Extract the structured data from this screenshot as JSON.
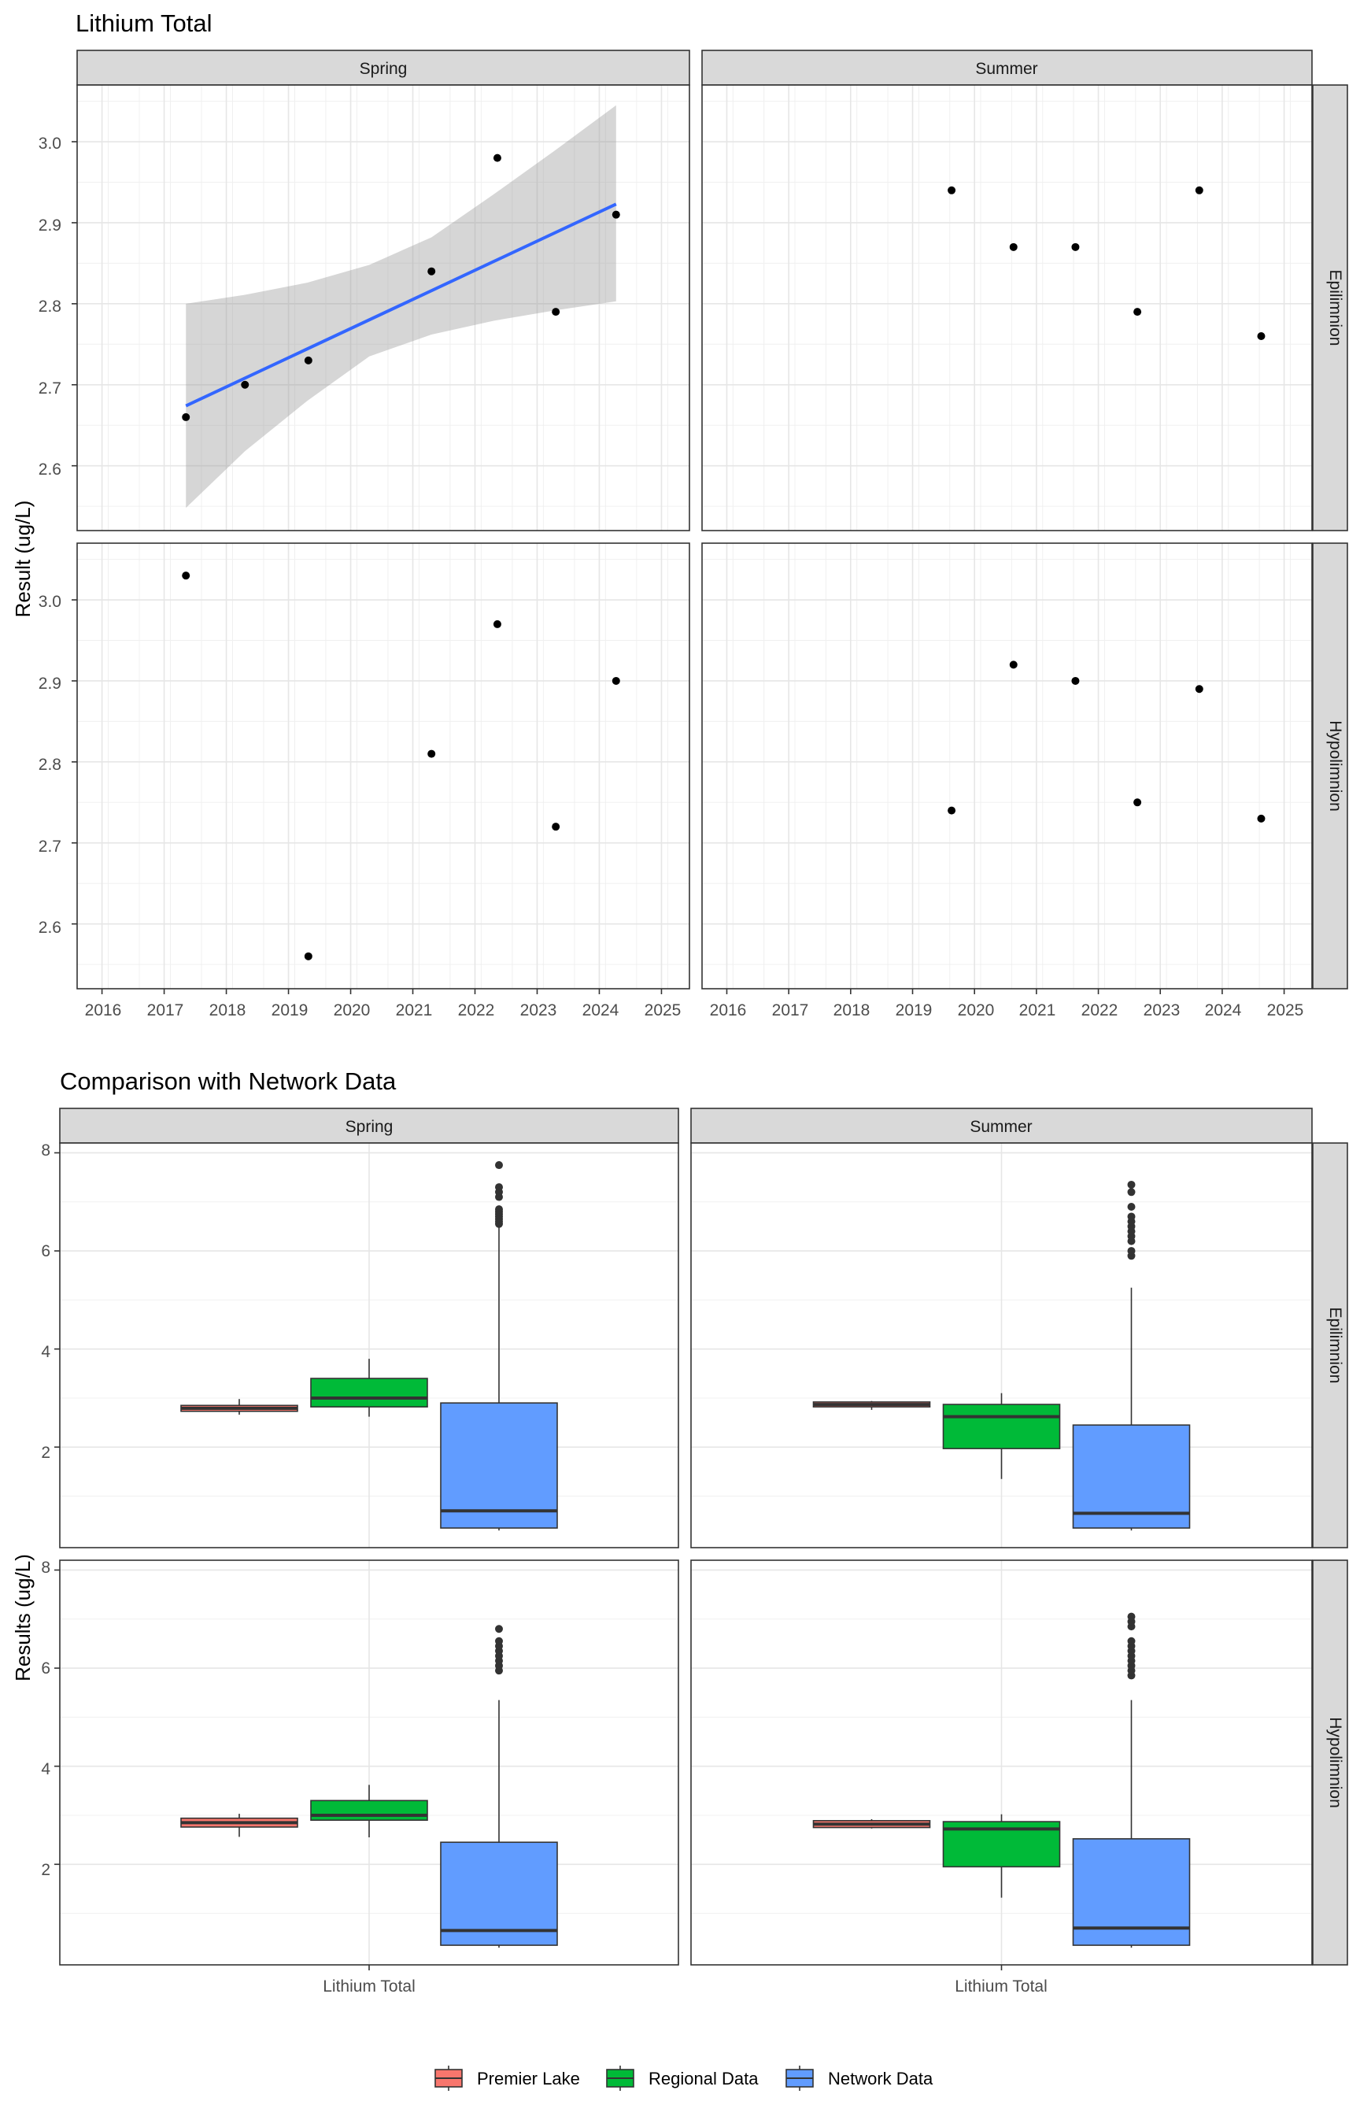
{
  "chart_data": [
    {
      "type": "scatter",
      "title": "Lithium Total",
      "ylabel": "Result (ug/L)",
      "xlabel": "",
      "columns": [
        "Spring",
        "Summer"
      ],
      "rows": [
        "Epilimnion",
        "Hypolimnion"
      ],
      "xlim": [
        2015.6,
        2025.45
      ],
      "ylim": [
        2.52,
        3.07
      ],
      "x_ticks": [
        "2016",
        "2017",
        "2018",
        "2019",
        "2020",
        "2021",
        "2022",
        "2023",
        "2024",
        "2025"
      ],
      "y_ticks": [
        "2.6",
        "2.7",
        "2.8",
        "2.9",
        "3.0"
      ],
      "grid": true,
      "panels": [
        {
          "col": "Spring",
          "row": "Epilimnion",
          "x": [
            2017.35,
            2018.3,
            2019.32,
            2021.3,
            2022.36,
            2023.3,
            2024.27
          ],
          "y": [
            2.66,
            2.7,
            2.73,
            2.84,
            2.98,
            2.79,
            2.91
          ],
          "trend": {
            "x": [
              2017.35,
              2024.27
            ],
            "y": [
              2.674,
              2.923
            ],
            "band_x": [
              2017.35,
              2018.3,
              2019.3,
              2020.3,
              2021.3,
              2022.3,
              2023.3,
              2024.27
            ],
            "band_upper": [
              2.8,
              2.811,
              2.826,
              2.848,
              2.882,
              2.935,
              2.99,
              3.045
            ],
            "band_lower": [
              2.548,
              2.618,
              2.68,
              2.735,
              2.762,
              2.779,
              2.792,
              2.803
            ]
          }
        },
        {
          "col": "Summer",
          "row": "Epilimnion",
          "x": [
            2019.63,
            2020.63,
            2021.63,
            2022.63,
            2023.63,
            2024.63
          ],
          "y": [
            2.94,
            2.87,
            2.87,
            2.79,
            2.94,
            2.76
          ]
        },
        {
          "col": "Spring",
          "row": "Hypolimnion",
          "x": [
            2017.35,
            2019.32,
            2021.3,
            2022.36,
            2023.3,
            2024.27
          ],
          "y": [
            3.03,
            2.56,
            2.81,
            2.97,
            2.72,
            2.9
          ]
        },
        {
          "col": "Summer",
          "row": "Hypolimnion",
          "x": [
            2019.63,
            2020.63,
            2021.63,
            2022.63,
            2023.63,
            2024.63
          ],
          "y": [
            2.74,
            2.92,
            2.9,
            2.75,
            2.89,
            2.73
          ]
        }
      ]
    },
    {
      "type": "box",
      "title": "Comparison with Network Data",
      "ylabel": "Results (ug/L)",
      "xlabel": "",
      "columns": [
        "Spring",
        "Summer"
      ],
      "rows": [
        "Epilimnion",
        "Hypolimnion"
      ],
      "category": "Lithium Total",
      "ylim": [
        -0.05,
        8.2
      ],
      "y_ticks": [
        "2",
        "4",
        "6",
        "8"
      ],
      "grid": true,
      "legend": {
        "position": "bottom",
        "items": [
          "Premier Lake",
          "Regional Data",
          "Network Data"
        ]
      },
      "colors": {
        "Premier Lake": "#F8766D",
        "Regional Data": "#00BA38",
        "Network Data": "#619CFF"
      },
      "panels": [
        {
          "col": "Spring",
          "row": "Epilimnion",
          "boxes": [
            {
              "group": "Premier Lake",
              "min": 2.66,
              "q1": 2.73,
              "median": 2.79,
              "q3": 2.85,
              "max": 2.98,
              "outliers": []
            },
            {
              "group": "Regional Data",
              "min": 2.62,
              "q1": 2.82,
              "median": 3.0,
              "q3": 3.4,
              "max": 3.8,
              "outliers": []
            },
            {
              "group": "Network Data",
              "min": 0.3,
              "q1": 0.35,
              "median": 0.7,
              "q3": 2.9,
              "max": 6.5,
              "outliers": [
                6.55,
                6.6,
                6.65,
                6.7,
                6.75,
                6.8,
                6.85,
                7.1,
                7.2,
                7.3,
                7.75
              ]
            }
          ]
        },
        {
          "col": "Summer",
          "row": "Epilimnion",
          "boxes": [
            {
              "group": "Premier Lake",
              "min": 2.76,
              "q1": 2.82,
              "median": 2.87,
              "q3": 2.92,
              "max": 2.94,
              "outliers": []
            },
            {
              "group": "Regional Data",
              "min": 1.35,
              "q1": 1.97,
              "median": 2.62,
              "q3": 2.87,
              "max": 3.1,
              "outliers": []
            },
            {
              "group": "Network Data",
              "min": 0.3,
              "q1": 0.35,
              "median": 0.65,
              "q3": 2.45,
              "max": 5.25,
              "outliers": [
                5.9,
                6.0,
                6.2,
                6.3,
                6.4,
                6.5,
                6.6,
                6.7,
                6.9,
                7.2,
                7.35
              ]
            }
          ]
        },
        {
          "col": "Spring",
          "row": "Hypolimnion",
          "boxes": [
            {
              "group": "Premier Lake",
              "min": 2.56,
              "q1": 2.76,
              "median": 2.85,
              "q3": 2.94,
              "max": 3.03,
              "outliers": []
            },
            {
              "group": "Regional Data",
              "min": 2.55,
              "q1": 2.9,
              "median": 3.0,
              "q3": 3.3,
              "max": 3.62,
              "outliers": []
            },
            {
              "group": "Network Data",
              "min": 0.3,
              "q1": 0.35,
              "median": 0.65,
              "q3": 2.45,
              "max": 5.35,
              "outliers": [
                5.95,
                6.05,
                6.15,
                6.25,
                6.35,
                6.45,
                6.55,
                6.8
              ]
            }
          ]
        },
        {
          "col": "Summer",
          "row": "Hypolimnion",
          "boxes": [
            {
              "group": "Premier Lake",
              "min": 2.73,
              "q1": 2.75,
              "median": 2.82,
              "q3": 2.89,
              "max": 2.92,
              "outliers": []
            },
            {
              "group": "Regional Data",
              "min": 1.32,
              "q1": 1.95,
              "median": 2.72,
              "q3": 2.87,
              "max": 3.02,
              "outliers": []
            },
            {
              "group": "Network Data",
              "min": 0.3,
              "q1": 0.35,
              "median": 0.7,
              "q3": 2.52,
              "max": 5.35,
              "outliers": [
                5.85,
                5.95,
                6.05,
                6.15,
                6.25,
                6.35,
                6.45,
                6.55,
                6.85,
                6.95,
                7.05
              ]
            }
          ]
        }
      ]
    }
  ]
}
